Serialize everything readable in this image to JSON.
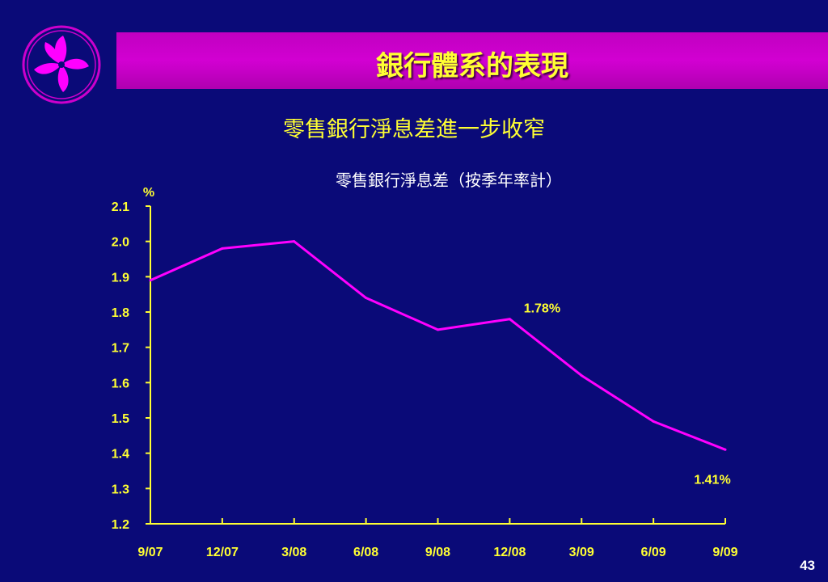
{
  "header": {
    "title": "銀行體系的表現",
    "subtitle": "零售銀行淨息差進一步收窄"
  },
  "logo": {
    "icon": "bauhinia-flower-icon"
  },
  "colors": {
    "background": "#0a0a78",
    "title_bar": "#cc00cc",
    "title_text": "#ffff33",
    "line": "#ff00ff",
    "axis": "#ffff33",
    "label": "#ffff33"
  },
  "chart_data": {
    "type": "line",
    "title": "零售銀行淨息差（按季年率計）",
    "ylabel": "%",
    "xlabel": "",
    "categories": [
      "9/07",
      "12/07",
      "3/08",
      "6/08",
      "9/08",
      "12/08",
      "3/09",
      "6/09",
      "9/09"
    ],
    "series": [
      {
        "values": [
          1.89,
          1.98,
          2.0,
          1.84,
          1.75,
          1.78,
          1.62,
          1.49,
          1.41
        ]
      }
    ],
    "ylim": [
      1.2,
      2.1
    ],
    "yticks": [
      "1.2",
      "1.3",
      "1.4",
      "1.5",
      "1.6",
      "1.7",
      "1.8",
      "1.9",
      "2.0",
      "2.1"
    ],
    "grid": false,
    "annotations": [
      {
        "index": 5,
        "text": "1.78%"
      },
      {
        "index": 8,
        "text": "1.41%"
      }
    ]
  },
  "footer": {
    "page_number": "43"
  }
}
